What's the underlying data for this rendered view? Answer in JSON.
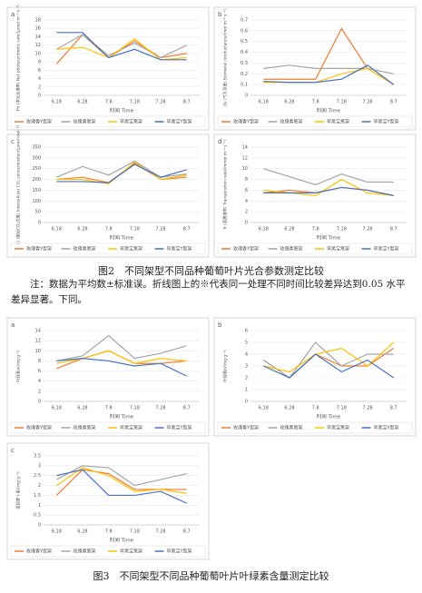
{
  "chart_data": [
    {
      "type": "line",
      "panel": "a",
      "ylabel": "Pn (净光合速率) Net photosynthetic rate/(μmol·m⁻²·s⁻¹)",
      "xlabel": "时间 Time",
      "categories": [
        "6.18",
        "6.28",
        "7.8",
        "7.18",
        "7.28",
        "8.7"
      ],
      "ylim": [
        0,
        18
      ],
      "yticks": [
        0,
        2,
        4,
        6,
        8,
        10,
        12,
        14,
        16,
        18
      ],
      "series": [
        {
          "name": "玫瑰香Y型架",
          "color": "#ed7d31",
          "values": [
            7.5,
            14.5,
            9,
            13,
            9,
            10
          ]
        },
        {
          "name": "玫瑰香篱架",
          "color": "#a5a5a5",
          "values": [
            11,
            14.5,
            9.5,
            12.5,
            9,
            12
          ]
        },
        {
          "name": "早黑宝篱架",
          "color": "#ffc000",
          "values": [
            11,
            11.5,
            9,
            13.5,
            8.5,
            9
          ]
        },
        {
          "name": "早黑宝Y型架",
          "color": "#4472c4",
          "values": [
            15,
            15,
            9,
            11,
            8.5,
            8.5
          ]
        }
      ]
    },
    {
      "type": "line",
      "panel": "b",
      "ylabel": "Gs (气孔导度) Stomatal conductance/(mol·m⁻²·s⁻¹)",
      "xlabel": "时间 Time",
      "categories": [
        "6.18",
        "6.28",
        "7.8",
        "7.18",
        "7.28",
        "8.7"
      ],
      "ylim": [
        0,
        0.7
      ],
      "yticks": [
        0,
        0.1,
        0.2,
        0.3,
        0.4,
        0.5,
        0.6,
        0.7
      ],
      "series": [
        {
          "name": "玫瑰香Y型架",
          "color": "#ed7d31",
          "values": [
            0.15,
            0.15,
            0.15,
            0.62,
            0.25,
            0.1
          ]
        },
        {
          "name": "玫瑰香篱架",
          "color": "#a5a5a5",
          "values": [
            0.25,
            0.28,
            0.25,
            0.25,
            0.25,
            0.2
          ]
        },
        {
          "name": "早黑宝篱架",
          "color": "#ffc000",
          "values": [
            0.12,
            0.12,
            0.12,
            0.2,
            0.25,
            0.1
          ]
        },
        {
          "name": "早黑宝Y型架",
          "color": "#4472c4",
          "values": [
            0.13,
            0.12,
            0.12,
            0.15,
            0.28,
            0.1
          ]
        }
      ]
    },
    {
      "type": "line",
      "panel": "c",
      "ylabel": "Ci (胞间CO₂浓度) Intercellular CO₂ concentration/(μmol·mol⁻¹)",
      "xlabel": "时间 Time",
      "categories": [
        "6.18",
        "6.28",
        "7.8",
        "7.18",
        "7.28",
        "8.7"
      ],
      "ylim": [
        0,
        350
      ],
      "yticks": [
        0,
        50,
        100,
        150,
        200,
        250,
        300,
        350
      ],
      "series": [
        {
          "name": "玫瑰香Y型架",
          "color": "#ed7d31",
          "values": [
            200,
            210,
            185,
            275,
            200,
            210
          ]
        },
        {
          "name": "玫瑰香篱架",
          "color": "#a5a5a5",
          "values": [
            210,
            260,
            220,
            285,
            210,
            225
          ]
        },
        {
          "name": "早黑宝篱架",
          "color": "#ffc000",
          "values": [
            200,
            200,
            180,
            280,
            200,
            220
          ]
        },
        {
          "name": "早黑宝Y型架",
          "color": "#4472c4",
          "values": [
            190,
            190,
            185,
            270,
            210,
            245
          ]
        }
      ]
    },
    {
      "type": "line",
      "panel": "d",
      "ylabel": "Tr (蒸腾速率) Transpiration rate/(mmol·m⁻²·s⁻¹)",
      "xlabel": "时间 Time",
      "categories": [
        "6.18",
        "6.28",
        "7.8",
        "7.18",
        "7.28",
        "8.7"
      ],
      "ylim": [
        0,
        14
      ],
      "yticks": [
        0,
        2,
        4,
        6,
        8,
        10,
        12,
        14
      ],
      "series": [
        {
          "name": "玫瑰香Y型架",
          "color": "#ed7d31",
          "values": [
            5.5,
            6,
            5.5,
            6.5,
            6,
            5
          ]
        },
        {
          "name": "玫瑰香篱架",
          "color": "#a5a5a5",
          "values": [
            10,
            8.5,
            7,
            9,
            7.5,
            7.5
          ]
        },
        {
          "name": "早黑宝篱架",
          "color": "#ffc000",
          "values": [
            6,
            5.5,
            5,
            8,
            5.5,
            5
          ]
        },
        {
          "name": "早黑宝Y型架",
          "color": "#4472c4",
          "values": [
            5.5,
            5.5,
            5.5,
            6.5,
            6,
            5
          ]
        }
      ]
    },
    {
      "type": "line",
      "panel": "a",
      "ylabel": "叶绿素a/(mg·g⁻¹)",
      "xlabel": "时间 Time",
      "categories": [
        "6.18",
        "6.28",
        "7.8",
        "7.18",
        "7.28",
        "8.7"
      ],
      "ylim": [
        0,
        14
      ],
      "yticks": [
        0,
        2,
        4,
        6,
        8,
        10,
        12,
        14
      ],
      "series": [
        {
          "name": "玫瑰香Y型架",
          "color": "#ed7d31",
          "values": [
            6.5,
            8.5,
            10,
            7.5,
            7.5,
            8
          ]
        },
        {
          "name": "玫瑰香篱架",
          "color": "#a5a5a5",
          "values": [
            8,
            9,
            13,
            8.5,
            9.5,
            11
          ]
        },
        {
          "name": "早黑宝篱架",
          "color": "#ffc000",
          "values": [
            7.5,
            8.5,
            10,
            7.5,
            8.5,
            8
          ]
        },
        {
          "name": "早黑宝Y型架",
          "color": "#4472c4",
          "values": [
            8,
            8.5,
            8,
            7,
            7.5,
            5
          ]
        }
      ]
    },
    {
      "type": "line",
      "panel": "b",
      "ylabel": "叶绿素b/(mg·g⁻¹)",
      "xlabel": "时间 Time",
      "categories": [
        "6.18",
        "6.28",
        "7.8",
        "7.18",
        "7.28",
        "8.7"
      ],
      "ylim": [
        0,
        6
      ],
      "yticks": [
        0,
        1,
        2,
        3,
        4,
        5,
        6
      ],
      "series": [
        {
          "name": "玫瑰香Y型架",
          "color": "#ed7d31",
          "values": [
            3.5,
            2,
            4,
            3,
            3,
            4.5
          ]
        },
        {
          "name": "玫瑰香篱架",
          "color": "#a5a5a5",
          "values": [
            3.5,
            2,
            5,
            3,
            4,
            4
          ]
        },
        {
          "name": "早黑宝篱架",
          "color": "#ffc000",
          "values": [
            3,
            2.5,
            4,
            4.5,
            3,
            5
          ]
        },
        {
          "name": "早黑宝Y型架",
          "color": "#4472c4",
          "values": [
            3,
            2,
            4,
            2.5,
            3.5,
            2
          ]
        }
      ]
    },
    {
      "type": "line",
      "panel": "c",
      "ylabel": "类胡萝卜素/(mg·g⁻¹)",
      "xlabel": "时间 Time",
      "categories": [
        "6.18",
        "6.28",
        "7.8",
        "7.18",
        "7.28",
        "8.7"
      ],
      "ylim": [
        0,
        3.5
      ],
      "yticks": [
        0,
        0.5,
        1,
        1.5,
        2,
        2.5,
        3,
        3.5
      ],
      "series": [
        {
          "name": "玫瑰香Y型架",
          "color": "#ed7d31",
          "values": [
            1.5,
            2.8,
            2.6,
            1.8,
            1.8,
            1.8
          ]
        },
        {
          "name": "玫瑰香篱架",
          "color": "#a5a5a5",
          "values": [
            2.3,
            3,
            2.9,
            2,
            2.3,
            2.6
          ]
        },
        {
          "name": "早黑宝篱架",
          "color": "#ffc000",
          "values": [
            2,
            2.9,
            2.5,
            1.7,
            1.8,
            1.6
          ]
        },
        {
          "name": "早黑宝Y型架",
          "color": "#4472c4",
          "values": [
            2.5,
            2.8,
            1.5,
            1.5,
            1.7,
            1.1
          ]
        }
      ]
    }
  ],
  "captions": {
    "figure2": "图2　不同架型不同品种葡萄叶片光合参数测定比较",
    "note": "注：数据为平均数±标准误。折线图上的※代表同一处理不同时间比较差异达到0.05 水平差异显著。下同。",
    "figure3": "图3　不同架型不同品种葡萄叶片叶绿素含量测定比较"
  }
}
